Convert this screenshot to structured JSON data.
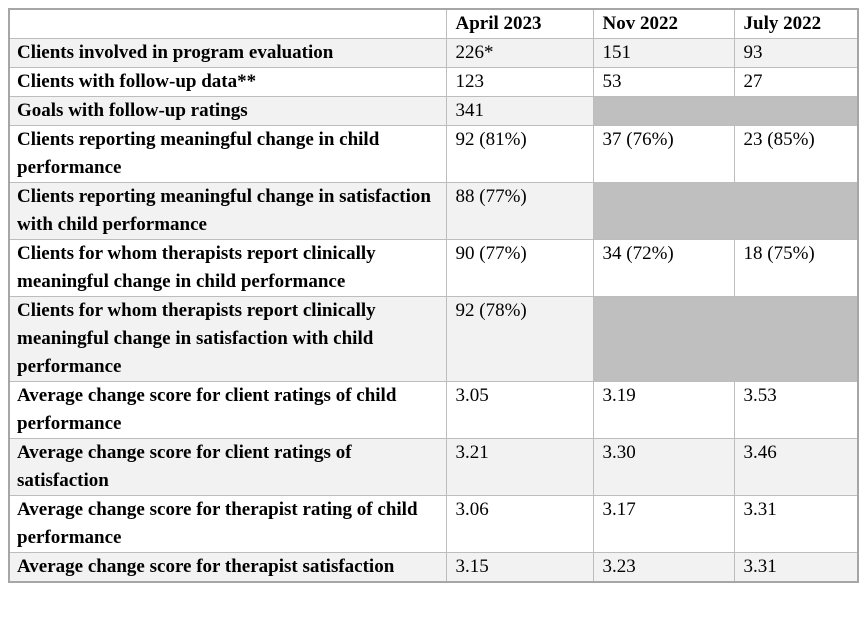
{
  "table": {
    "columns": [
      "",
      "April 2023",
      "Nov 2022",
      "July 2022"
    ],
    "colors": {
      "row_alt": "#f2f2f2",
      "blank_cell": "#bfbfbf",
      "border_inner": "#bdbdbd",
      "border_outer": "#a6a6a6"
    },
    "rows": [
      {
        "label": "Clients involved in program evaluation",
        "values": [
          "226*",
          "151",
          "93"
        ]
      },
      {
        "label": "Clients with follow-up data**",
        "values": [
          "123",
          "53",
          "27"
        ]
      },
      {
        "label": "Goals with follow-up ratings",
        "values": [
          "341",
          null,
          null
        ]
      },
      {
        "label": "Clients reporting meaningful change in child performance",
        "values": [
          "92 (81%)",
          "37 (76%)",
          "23 (85%)"
        ]
      },
      {
        "label": "Clients reporting meaningful change in satisfaction with child performance",
        "values": [
          "88 (77%)",
          null,
          null
        ]
      },
      {
        "label": "Clients for whom therapists report clinically meaningful change in child performance",
        "values": [
          "90 (77%)",
          "34 (72%)",
          "18 (75%)"
        ]
      },
      {
        "label": "Clients for whom therapists report clinically meaningful change in satisfaction with child performance",
        "values": [
          "92 (78%)",
          null,
          null
        ]
      },
      {
        "label": "Average change score for client ratings of child performance",
        "values": [
          "3.05",
          "3.19",
          "3.53"
        ]
      },
      {
        "label": "Average change score for client ratings of satisfaction",
        "values": [
          "3.21",
          "3.30",
          "3.46"
        ]
      },
      {
        "label": "Average change score for therapist rating of child performance",
        "values": [
          "3.06",
          "3.17",
          "3.31"
        ]
      },
      {
        "label": "Average change score for therapist satisfaction",
        "values": [
          "3.15",
          "3.23",
          "3.31"
        ]
      }
    ]
  }
}
